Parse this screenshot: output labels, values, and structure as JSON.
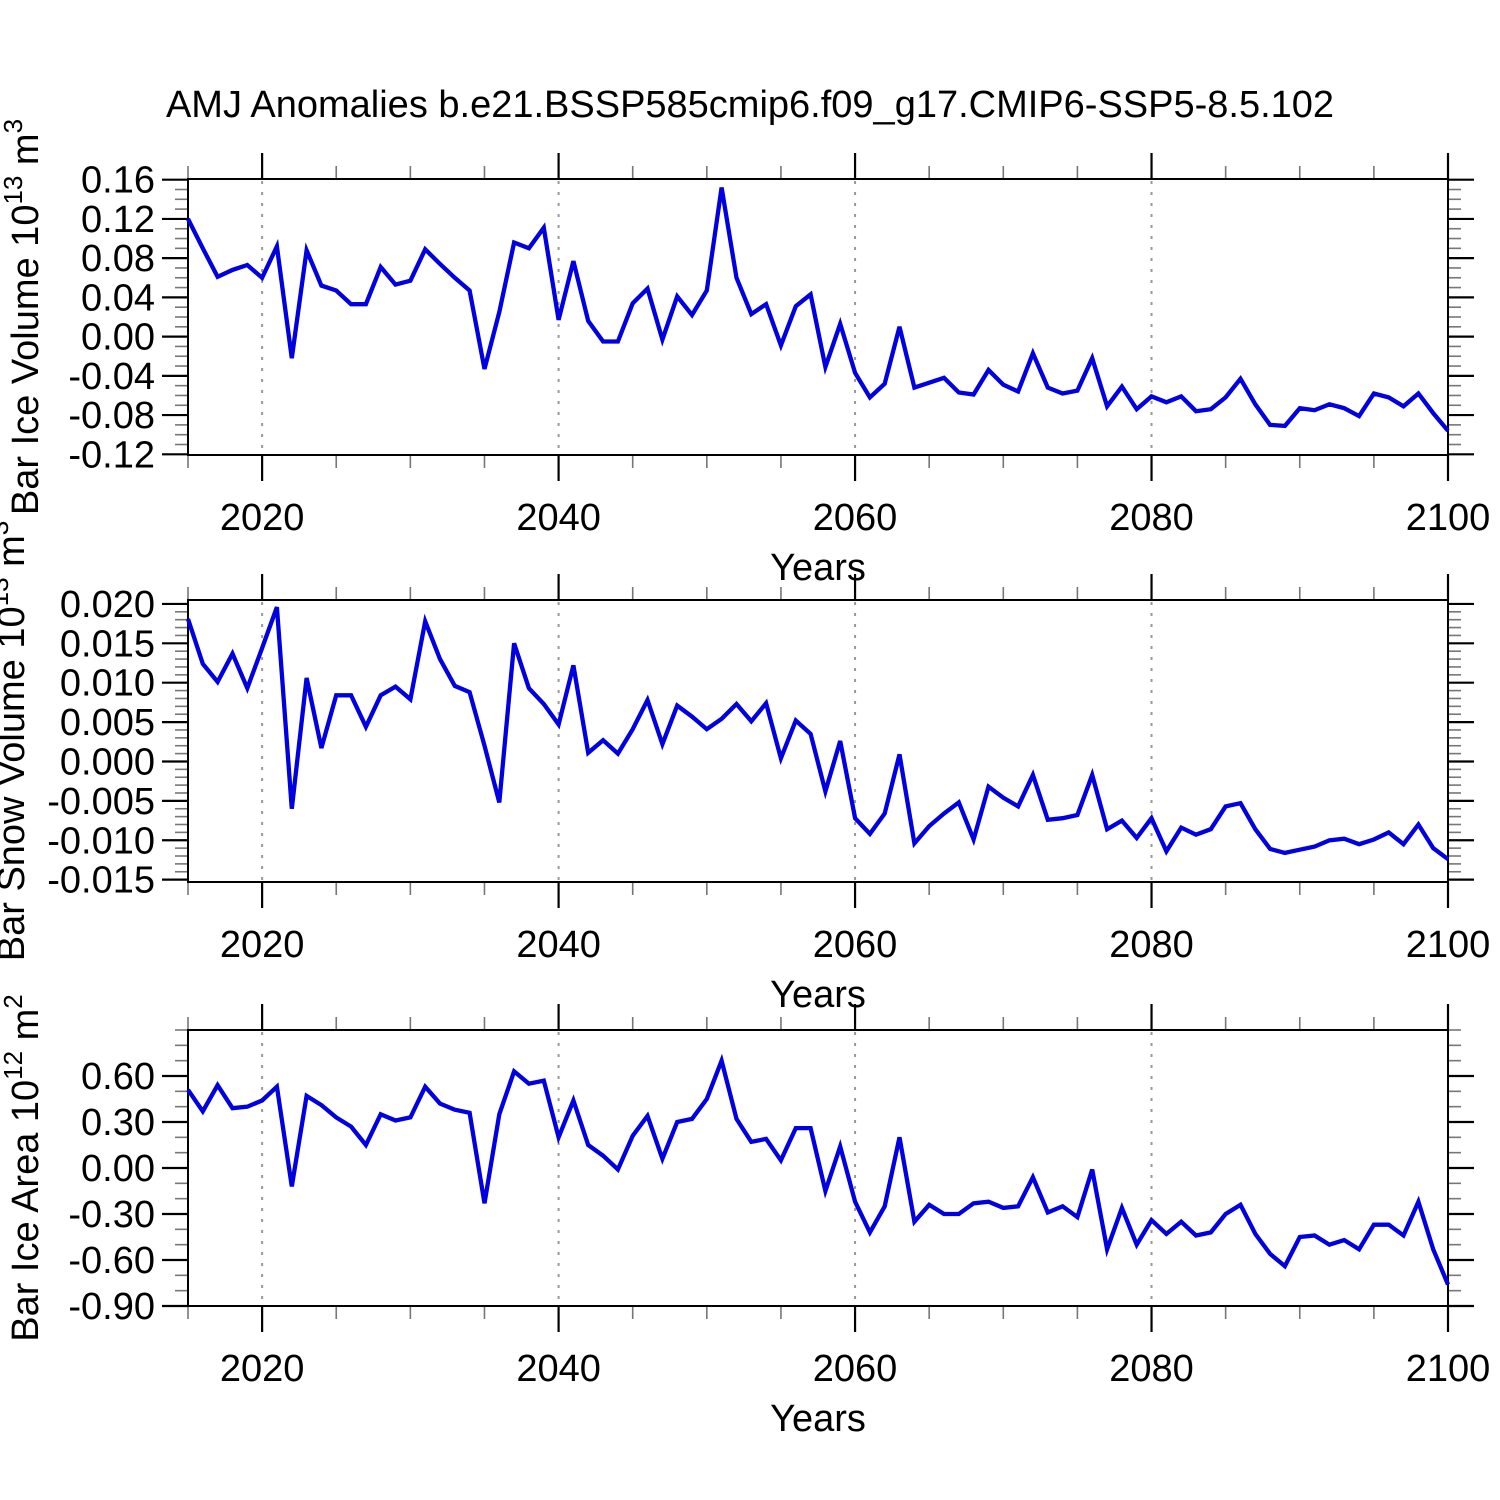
{
  "title": "AMJ Anomalies b.e21.BSSP585cmip6.f09_g17.CMIP6-SSP5-8.5.102",
  "colors": {
    "background": "#ffffff",
    "line": "#0000e0",
    "frame": "#000000",
    "gridline": "#999999",
    "minor_tick": "#777777"
  },
  "x_axis": {
    "label": "Years",
    "range": [
      2015,
      2100
    ],
    "major_ticks": [
      2020,
      2040,
      2060,
      2080,
      2100
    ],
    "minor_tick_step": 5,
    "dashed_gridlines": [
      2020,
      2040,
      2060,
      2080
    ]
  },
  "chart_data": [
    {
      "type": "line",
      "name": "ice-volume",
      "ylabel": "Bar Ice Volume 10^13 m^3",
      "ylabel_segments": [
        {
          "t": "Bar Ice Volume 10"
        },
        {
          "t": "13",
          "sup": true
        },
        {
          "t": " m"
        },
        {
          "t": "3",
          "sup": true
        }
      ],
      "ylim": [
        -0.1207,
        0.1607
      ],
      "yticks": [
        0.16,
        0.12,
        0.08,
        0.04,
        0.0,
        -0.04,
        -0.08,
        -0.12
      ],
      "ytick_minor_step": 0.01,
      "ytick_decimals": 2,
      "x_years": {
        "start": 2015,
        "end": 2100,
        "step": 1
      },
      "values": [
        0.12,
        0.09,
        0.061,
        0.068,
        0.073,
        0.06,
        0.092,
        -0.022,
        0.088,
        0.052,
        0.047,
        0.033,
        0.033,
        0.071,
        0.053,
        0.057,
        0.089,
        0.074,
        0.06,
        0.047,
        -0.033,
        0.025,
        0.096,
        0.09,
        0.111,
        0.017,
        0.077,
        0.016,
        -0.005,
        -0.005,
        0.034,
        0.049,
        -0.003,
        0.041,
        0.022,
        0.047,
        0.152,
        0.06,
        0.023,
        0.033,
        -0.009,
        0.031,
        0.043,
        -0.031,
        0.013,
        -0.037,
        -0.062,
        -0.048,
        0.01,
        -0.052,
        -0.047,
        -0.042,
        -0.057,
        -0.059,
        -0.034,
        -0.049,
        -0.056,
        -0.017,
        -0.052,
        -0.058,
        -0.055,
        -0.022,
        -0.071,
        -0.051,
        -0.074,
        -0.061,
        -0.067,
        -0.061,
        -0.076,
        -0.074,
        -0.062,
        -0.043,
        -0.069,
        -0.09,
        -0.091,
        -0.073,
        -0.075,
        -0.069,
        -0.073,
        -0.081,
        -0.058,
        -0.062,
        -0.071,
        -0.058,
        -0.078,
        -0.096
      ]
    },
    {
      "type": "line",
      "name": "snow-volume",
      "ylabel": "Bar Snow Volume 10^13 m^3",
      "ylabel_segments": [
        {
          "t": "Bar Snow Volume 10"
        },
        {
          "t": "13",
          "sup": true
        },
        {
          "t": " m"
        },
        {
          "t": "3",
          "sup": true
        }
      ],
      "ylim": [
        -0.0153,
        0.0205
      ],
      "yticks": [
        0.02,
        0.015,
        0.01,
        0.005,
        0.0,
        -0.005,
        -0.01,
        -0.015
      ],
      "ytick_minor_step": 0.001,
      "ytick_decimals": 3,
      "x_years": {
        "start": 2015,
        "end": 2100,
        "step": 1
      },
      "values": [
        0.0181,
        0.0124,
        0.0101,
        0.0137,
        0.0093,
        0.0144,
        0.0196,
        -0.006,
        0.0106,
        0.0017,
        0.0084,
        0.0084,
        0.0044,
        0.0084,
        0.0095,
        0.0079,
        0.0178,
        0.013,
        0.0096,
        0.0088,
        0.002,
        -0.0052,
        0.015,
        0.0093,
        0.0073,
        0.0047,
        0.0122,
        0.0011,
        0.0027,
        0.001,
        0.0041,
        0.0078,
        0.0022,
        0.0071,
        0.0057,
        0.0041,
        0.0054,
        0.0073,
        0.0051,
        0.0074,
        0.0004,
        0.0052,
        0.0035,
        -0.0038,
        0.0026,
        -0.0072,
        -0.0092,
        -0.0066,
        0.0009,
        -0.0104,
        -0.0082,
        -0.0066,
        -0.0052,
        -0.0099,
        -0.0032,
        -0.0046,
        -0.0057,
        -0.0017,
        -0.0074,
        -0.0072,
        -0.0068,
        -0.0017,
        -0.0086,
        -0.0075,
        -0.0097,
        -0.0072,
        -0.0114,
        -0.0084,
        -0.0093,
        -0.0086,
        -0.0057,
        -0.0053,
        -0.0086,
        -0.0111,
        -0.0116,
        -0.0112,
        -0.0108,
        -0.01,
        -0.0098,
        -0.0105,
        -0.0099,
        -0.009,
        -0.0105,
        -0.008,
        -0.011,
        -0.0124
      ]
    },
    {
      "type": "line",
      "name": "ice-area",
      "ylabel": "Bar Ice Area 10^12 m^2",
      "ylabel_segments": [
        {
          "t": "Bar Ice Area 10"
        },
        {
          "t": "12",
          "sup": true
        },
        {
          "t": " m"
        },
        {
          "t": "2",
          "sup": true
        }
      ],
      "ylim": [
        -0.9,
        0.9
      ],
      "yticks": [
        0.6,
        0.3,
        0.0,
        -0.3,
        -0.6,
        -0.9
      ],
      "ytick_minor_step": 0.1,
      "ytick_decimals": 2,
      "x_years": {
        "start": 2015,
        "end": 2100,
        "step": 1
      },
      "values": [
        0.51,
        0.37,
        0.54,
        0.39,
        0.4,
        0.44,
        0.53,
        -0.12,
        0.47,
        0.41,
        0.33,
        0.27,
        0.15,
        0.35,
        0.31,
        0.33,
        0.53,
        0.42,
        0.38,
        0.36,
        -0.23,
        0.35,
        0.63,
        0.55,
        0.57,
        0.2,
        0.44,
        0.15,
        0.08,
        -0.01,
        0.21,
        0.34,
        0.06,
        0.3,
        0.32,
        0.45,
        0.7,
        0.32,
        0.17,
        0.19,
        0.05,
        0.26,
        0.26,
        -0.15,
        0.14,
        -0.22,
        -0.42,
        -0.25,
        0.2,
        -0.35,
        -0.24,
        -0.3,
        -0.3,
        -0.23,
        -0.22,
        -0.26,
        -0.25,
        -0.06,
        -0.29,
        -0.25,
        -0.32,
        -0.01,
        -0.53,
        -0.26,
        -0.5,
        -0.34,
        -0.43,
        -0.35,
        -0.44,
        -0.42,
        -0.3,
        -0.24,
        -0.43,
        -0.56,
        -0.64,
        -0.45,
        -0.44,
        -0.5,
        -0.47,
        -0.53,
        -0.37,
        -0.37,
        -0.44,
        -0.22,
        -0.53,
        -0.76
      ]
    }
  ]
}
